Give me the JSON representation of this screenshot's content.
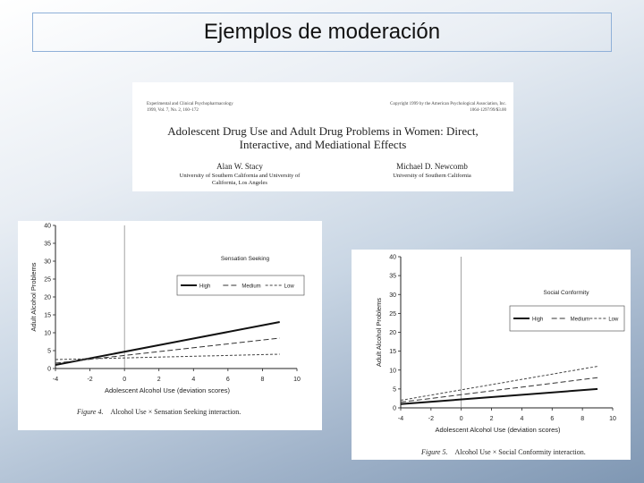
{
  "slide": {
    "title": "Ejemplos de moderación"
  },
  "paper": {
    "journal_line1": "Experimental and Clinical Psychopharmacology",
    "journal_line2": "1999, Vol. 7, No. 2, 160–172",
    "copyright_line1": "Copyright 1999 by the American Psychological Association, Inc.",
    "copyright_line2": "1064-1297/99/$3.00",
    "title_line1": "Adolescent Drug Use and Adult Drug Problems in Women: Direct,",
    "title_line2": "Interactive, and Mediational Effects",
    "author1": "Alan W. Stacy",
    "affiliation1_line1": "University of Southern California and University of",
    "affiliation1_line2": "California, Los Angeles",
    "author2": "Michael D. Newcomb",
    "affiliation2_line1": "University of Southern California"
  },
  "chart_data": [
    {
      "type": "line",
      "title": "",
      "xlabel": "Adolescent  Alcohol Use   (deviation scores)",
      "ylabel": "Adult Alcohol Problems",
      "xlim": [
        -4,
        10
      ],
      "ylim": [
        0,
        40
      ],
      "xticks": [
        -4,
        -2,
        0,
        2,
        4,
        6,
        8,
        10
      ],
      "yticks": [
        0,
        5,
        10,
        15,
        20,
        25,
        30,
        35,
        40
      ],
      "legend_title": "Sensation Seeking",
      "series": [
        {
          "name": "High",
          "x": [
            -4,
            9
          ],
          "y": [
            1,
            13
          ],
          "color": "#111111",
          "style": "thick"
        },
        {
          "name": "Medium",
          "x": [
            -4,
            9
          ],
          "y": [
            1.5,
            8.5
          ],
          "color": "#333333",
          "style": "dash"
        },
        {
          "name": "Low",
          "x": [
            -4,
            9
          ],
          "y": [
            2.5,
            4
          ],
          "color": "#444444",
          "style": "dot"
        }
      ],
      "caption_label": "Figure 4.",
      "caption_text": "Alcohol Use × Sensation Seeking interaction."
    },
    {
      "type": "line",
      "title": "",
      "xlabel": "Adolescent Alcohol Use (deviation scores)",
      "ylabel": "Adult Alcohol Problems",
      "xlim": [
        -4,
        10
      ],
      "ylim": [
        0,
        40
      ],
      "xticks": [
        -4,
        -2,
        0,
        2,
        4,
        6,
        8,
        10
      ],
      "yticks": [
        0,
        5,
        10,
        15,
        20,
        25,
        30,
        35,
        40
      ],
      "legend_title": "Social Conformity",
      "series": [
        {
          "name": "High",
          "x": [
            -4,
            9
          ],
          "y": [
            1,
            5
          ],
          "color": "#111111",
          "style": "thick"
        },
        {
          "name": "Medium",
          "x": [
            -4,
            9
          ],
          "y": [
            1.5,
            8
          ],
          "color": "#333333",
          "style": "dash"
        },
        {
          "name": "Low",
          "x": [
            -4,
            9
          ],
          "y": [
            2,
            11
          ],
          "color": "#444444",
          "style": "dot"
        }
      ],
      "caption_label": "Figure 5.",
      "caption_text": "Alcohol Use × Social Conformity interaction."
    }
  ]
}
